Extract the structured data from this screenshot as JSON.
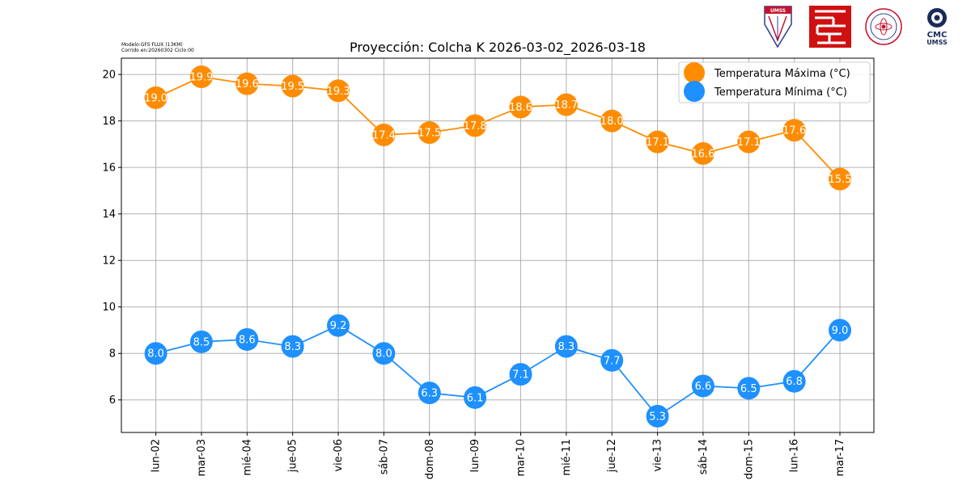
{
  "header": {
    "model_line": "Modelo:GFS FLUX (13KM)",
    "run_line": "Corrido en:20260302 Ciclo:00",
    "logos": {
      "umss_shield": "UMSS",
      "cmc_top": "CMC",
      "cmc_bottom": "UMSS"
    }
  },
  "chart_data": {
    "type": "line",
    "title": "Proyección: Colcha K 2026-03-02_2026-03-18",
    "xlabel": "",
    "ylabel": "",
    "categories": [
      "lun-02",
      "mar-03",
      "mié-04",
      "jue-05",
      "vie-06",
      "sáb-07",
      "dom-08",
      "lun-09",
      "mar-10",
      "mié-11",
      "jue-12",
      "vie-13",
      "sáb-14",
      "dom-15",
      "lun-16",
      "mar-17"
    ],
    "ylim": [
      4.6,
      20.7
    ],
    "yticks": [
      6,
      8,
      10,
      12,
      14,
      16,
      18,
      20
    ],
    "grid": true,
    "legend_position": "top-right",
    "series": [
      {
        "name": "Temperatura Máxima  (°C)",
        "color": "#ff8c00",
        "values": [
          19.0,
          19.9,
          19.6,
          19.5,
          19.3,
          17.4,
          17.5,
          17.8,
          18.6,
          18.7,
          18.0,
          17.1,
          16.6,
          17.1,
          17.6,
          15.5
        ]
      },
      {
        "name": "Temperatura Mínima  (°C)",
        "color": "#1e90ff",
        "values": [
          8.0,
          8.5,
          8.6,
          8.3,
          9.2,
          8.0,
          6.3,
          6.1,
          7.1,
          8.3,
          7.7,
          5.3,
          6.6,
          6.5,
          6.8,
          9.0
        ]
      }
    ]
  }
}
